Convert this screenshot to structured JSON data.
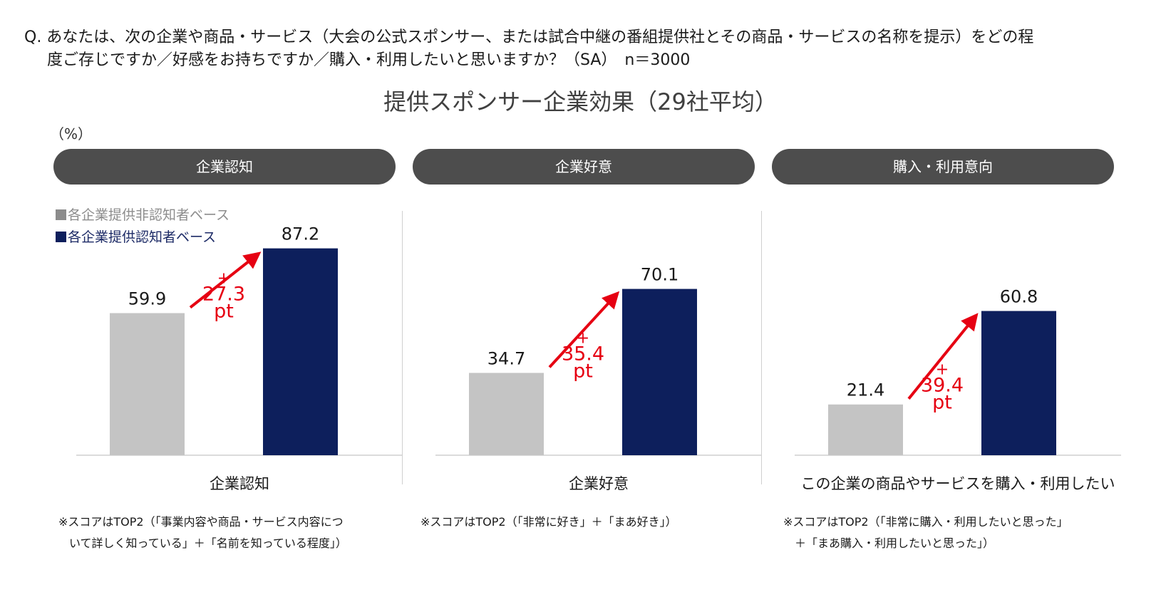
{
  "question": {
    "line1": "Q. あなたは、次の企業や商品・サービス（大会の公式スポンサー、または試合中継の番組提供社とその商品・サービスの名称を提示）をどの程",
    "line2": "度ご存じですか／好感をお持ちですか／購入・利用したいと思いますか？（SA）　n＝3000"
  },
  "title": "提供スポンサー企業効果（29社平均）",
  "unit": "（%）",
  "panels": [
    {
      "header": "企業認知",
      "category": "企業認知",
      "notes": [
        "※スコアはTOP2（「事業内容や商品・サービス内容につ",
        "いて詳しく知っている」＋「名前を知っている程度」）"
      ]
    },
    {
      "header": "企業好意",
      "category": "企業好意",
      "notes": [
        "※スコアはTOP2（「非常に好き」＋「まあ好き」）"
      ]
    },
    {
      "header": "購入・利用意向",
      "category": "この企業の商品やサービスを購入・利用したい",
      "notes": [
        "※スコアはTOP2（「非常に購入・利用したいと思った」",
        "＋「まあ購入・利用したいと思った」）"
      ]
    }
  ],
  "legend": [
    "各企業提供非認知者ベース",
    "各企業提供認知者ベース"
  ],
  "colors": {
    "non_aware": "#c4c4c4",
    "aware": "#0d1f5c",
    "arrow": "#e60012",
    "axis": "#cfcfcf"
  },
  "chart_data": {
    "type": "bar",
    "title": "提供スポンサー企業効果（29社平均）",
    "categories": [
      "企業認知",
      "企業好意",
      "購入・利用意向"
    ],
    "series": [
      {
        "name": "各企業提供非認知者ベース",
        "values": [
          59.9,
          34.7,
          21.4
        ]
      },
      {
        "name": "各企業提供認知者ベース",
        "values": [
          87.2,
          70.1,
          60.8
        ]
      }
    ],
    "value_labels": [
      [
        "59.9",
        "87.2"
      ],
      [
        "34.7",
        "70.1"
      ],
      [
        "21.4",
        "60.8"
      ]
    ],
    "differences": [
      {
        "sign": "+",
        "value": "27.3",
        "unit": "pt"
      },
      {
        "sign": "+",
        "value": "35.4",
        "unit": "pt"
      },
      {
        "sign": "+",
        "value": "39.4",
        "unit": "pt"
      }
    ],
    "ylabel": "（%）",
    "ylim": [
      0,
      100
    ],
    "grid": false,
    "legend_position": "top-left"
  }
}
